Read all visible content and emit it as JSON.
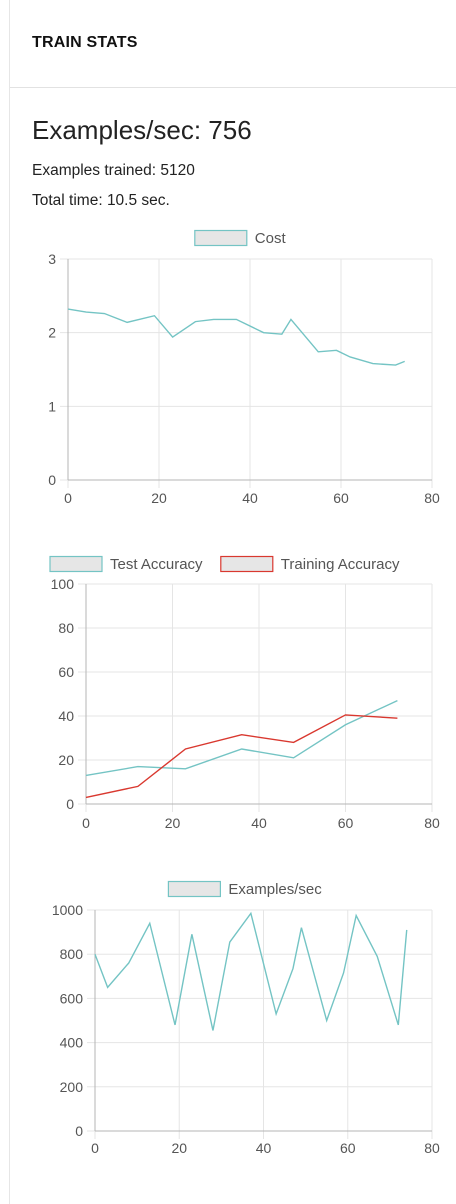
{
  "header": {
    "title": "TRAIN STATS"
  },
  "stats": {
    "examples_per_sec": "Examples/sec: 756",
    "examples_trained": "Examples trained: 5120",
    "total_time": "Total time: 10.5 sec."
  },
  "chart_data": [
    {
      "type": "line",
      "legend": [
        "Cost"
      ],
      "xlim": [
        0,
        80
      ],
      "ylim": [
        0,
        3
      ],
      "xticks": [
        0,
        20,
        40,
        60,
        80
      ],
      "yticks": [
        0,
        1,
        2,
        3
      ],
      "grid": true,
      "legend_position": "top",
      "series": [
        {
          "name": "Cost",
          "color": "#74c4c4",
          "x": [
            0,
            4,
            8,
            13,
            19,
            23,
            28,
            32,
            37,
            43,
            47,
            49,
            55,
            59,
            62,
            67,
            72,
            74
          ],
          "y": [
            2.32,
            2.28,
            2.26,
            2.14,
            2.23,
            1.94,
            2.15,
            2.18,
            2.18,
            2.0,
            1.98,
            2.18,
            1.74,
            1.76,
            1.67,
            1.58,
            1.56,
            1.61
          ]
        }
      ]
    },
    {
      "type": "line",
      "legend": [
        "Test Accuracy",
        "Training Accuracy"
      ],
      "xlim": [
        0,
        80
      ],
      "ylim": [
        0,
        100
      ],
      "xticks": [
        0,
        20,
        40,
        60,
        80
      ],
      "yticks": [
        0,
        20,
        40,
        60,
        80,
        100
      ],
      "grid": true,
      "legend_position": "top",
      "series": [
        {
          "name": "Test Accuracy",
          "color": "#74c4c4",
          "x": [
            0,
            12,
            23,
            36,
            48,
            60,
            72
          ],
          "y": [
            13,
            17,
            16,
            25,
            21,
            36,
            47
          ]
        },
        {
          "name": "Training Accuracy",
          "color": "#d9382f",
          "x": [
            0,
            12,
            23,
            36,
            48,
            60,
            72
          ],
          "y": [
            3,
            8,
            25,
            31.5,
            28,
            40.5,
            39
          ]
        }
      ]
    },
    {
      "type": "line",
      "legend": [
        "Examples/sec"
      ],
      "xlim": [
        0,
        80
      ],
      "ylim": [
        0,
        1000
      ],
      "xticks": [
        0,
        20,
        40,
        60,
        80
      ],
      "yticks": [
        0,
        200,
        400,
        600,
        800,
        1000
      ],
      "grid": true,
      "legend_position": "top",
      "series": [
        {
          "name": "Examples/sec",
          "color": "#74c4c4",
          "x": [
            0,
            3,
            8,
            13,
            19,
            23,
            28,
            32,
            37,
            43,
            47,
            49,
            55,
            59,
            62,
            67,
            72,
            74
          ],
          "y": [
            800,
            650,
            760,
            940,
            480,
            890,
            455,
            855,
            985,
            530,
            735,
            920,
            500,
            715,
            975,
            790,
            480,
            910
          ]
        }
      ]
    }
  ]
}
